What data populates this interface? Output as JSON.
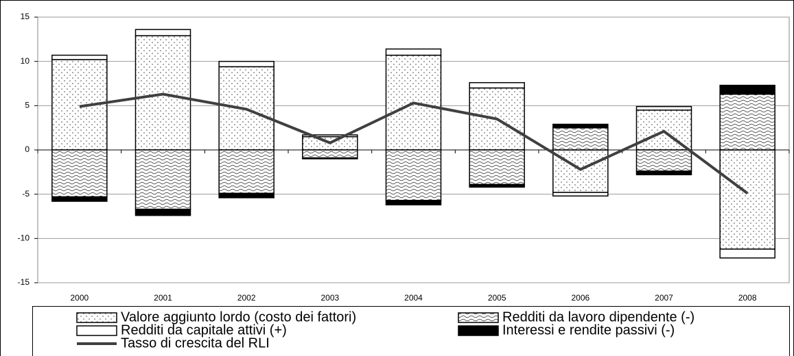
{
  "chart_data": {
    "type": "bar",
    "stacked": true,
    "categories": [
      "2000",
      "2001",
      "2002",
      "2003",
      "2004",
      "2005",
      "2006",
      "2007",
      "2008"
    ],
    "series": [
      {
        "name": "Valore aggiunto lordo (costo dei fattori)",
        "type": "bar",
        "pattern": "dots",
        "color": "#ffffff",
        "values": [
          10.2,
          12.9,
          9.4,
          1.5,
          10.7,
          7.0,
          -4.8,
          4.5,
          -11.2
        ]
      },
      {
        "name": "Redditi da lavoro dipendente (-)",
        "type": "bar",
        "pattern": "waves",
        "color": "#ffffff",
        "values": [
          -5.3,
          -6.7,
          -4.9,
          -0.9,
          -5.7,
          -3.9,
          2.5,
          -2.4,
          6.3
        ]
      },
      {
        "name": "Redditi da capitale attivi (+)",
        "type": "bar",
        "pattern": "none",
        "color": "#ffffff",
        "values": [
          0.5,
          0.7,
          0.6,
          0.2,
          0.7,
          0.6,
          -0.4,
          0.4,
          -1.0
        ]
      },
      {
        "name": "Interessi e rendite passivi (-)",
        "type": "bar",
        "pattern": "none",
        "color": "#000000",
        "values": [
          -0.5,
          -0.7,
          -0.5,
          -0.1,
          -0.5,
          -0.3,
          0.4,
          -0.4,
          1.0
        ]
      },
      {
        "name": "Tasso di crescita del RLI",
        "type": "line",
        "color": "#404040",
        "values": [
          4.9,
          6.3,
          4.6,
          0.8,
          5.3,
          3.5,
          -2.2,
          2.1,
          -4.9
        ]
      }
    ],
    "ylim": [
      -15,
      15
    ],
    "yticks": [
      -15,
      -10,
      -5,
      0,
      5,
      10,
      15
    ],
    "grid": true,
    "legend": "bottom"
  }
}
